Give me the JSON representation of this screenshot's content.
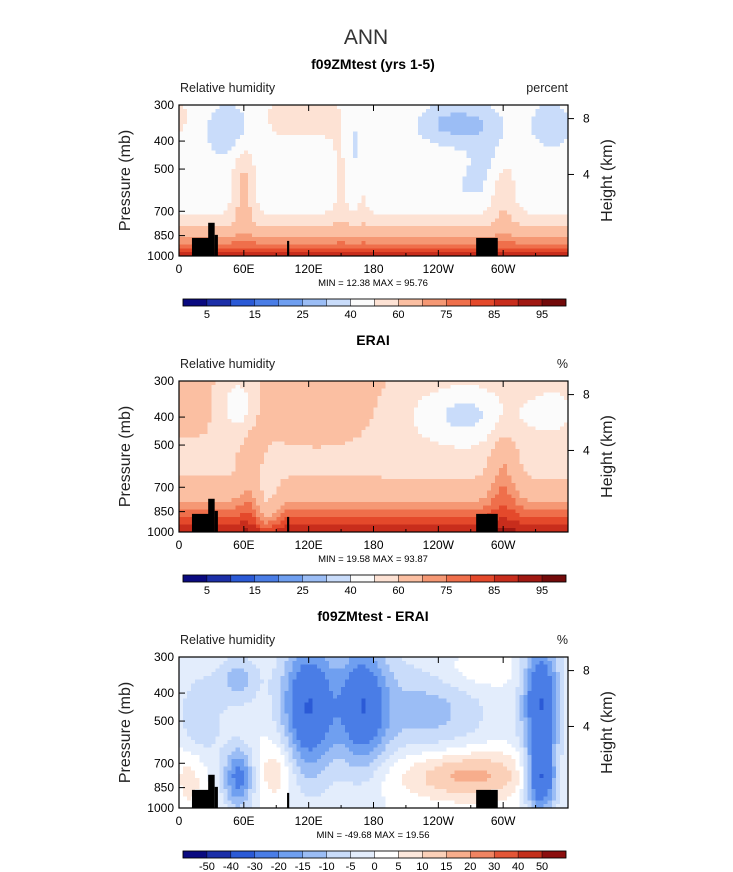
{
  "figure": {
    "title": "ANN"
  },
  "colors": {
    "seq": [
      "#0a0a80",
      "#1c2fa8",
      "#2b5ad6",
      "#4a7de6",
      "#6f9ff0",
      "#9bbdf5",
      "#c9dcfa",
      "#fbfbfb",
      "#fde2d4",
      "#fbbfa2",
      "#f59874",
      "#ef6f4b",
      "#e4492b",
      "#c82d1c",
      "#a01812",
      "#730a0a"
    ],
    "diff": [
      "#0a0a80",
      "#1c2fa8",
      "#2b5ad6",
      "#4a7de6",
      "#6f9ff0",
      "#9bbdf5",
      "#c9dcfa",
      "#e3edfc",
      "#ffffff",
      "#fde8dc",
      "#fbd0b8",
      "#f7ad8c",
      "#f08462",
      "#e35637",
      "#c4301c",
      "#8c0f0f"
    ]
  },
  "chart_data": [
    {
      "type": "heatmap",
      "title": "f09ZMtest (yrs 1-5)",
      "left_label": "Relative humidity",
      "right_label": "percent",
      "ylabel": "Pressure (mb)",
      "ylabel_right": "Height (km)",
      "yticks": [
        "300",
        "400",
        "500",
        "700",
        "850",
        "1000"
      ],
      "yticks_right": [
        "8",
        "4"
      ],
      "xticks": [
        "0",
        "60E",
        "120E",
        "180",
        "120W",
        "60W"
      ],
      "stats": "MIN =   12.38   MAX =   95.76",
      "colorbar_labels": [
        "5",
        "15",
        "25",
        "40",
        "60",
        "75",
        "85",
        "95"
      ],
      "palette": "seq",
      "field": "model"
    },
    {
      "type": "heatmap",
      "title": "ERAI",
      "left_label": "Relative humidity",
      "right_label": "%",
      "ylabel": "Pressure (mb)",
      "ylabel_right": "Height (km)",
      "yticks": [
        "300",
        "400",
        "500",
        "700",
        "850",
        "1000"
      ],
      "yticks_right": [
        "8",
        "4"
      ],
      "xticks": [
        "0",
        "60E",
        "120E",
        "180",
        "120W",
        "60W"
      ],
      "stats": "MIN =   19.58   MAX =   93.87",
      "colorbar_labels": [
        "5",
        "15",
        "25",
        "40",
        "60",
        "75",
        "85",
        "95"
      ],
      "palette": "seq",
      "field": "obs"
    },
    {
      "type": "heatmap",
      "title": "f09ZMtest - ERAI",
      "left_label": "Relative humidity",
      "right_label": "%",
      "ylabel": "Pressure (mb)",
      "ylabel_right": "Height (km)",
      "yticks": [
        "300",
        "400",
        "500",
        "700",
        "850",
        "1000"
      ],
      "yticks_right": [
        "8",
        "4"
      ],
      "xticks": [
        "0",
        "60E",
        "120E",
        "180",
        "120W",
        "60W"
      ],
      "stats": "MIN = -49.68   MAX =   19.56",
      "colorbar_labels": [
        "-50",
        "-40",
        "-30",
        "-20",
        "-15",
        "-10",
        "-5",
        "0",
        "5",
        "10",
        "15",
        "20",
        "30",
        "40",
        "50"
      ],
      "palette": "diff",
      "field": "diff"
    }
  ]
}
